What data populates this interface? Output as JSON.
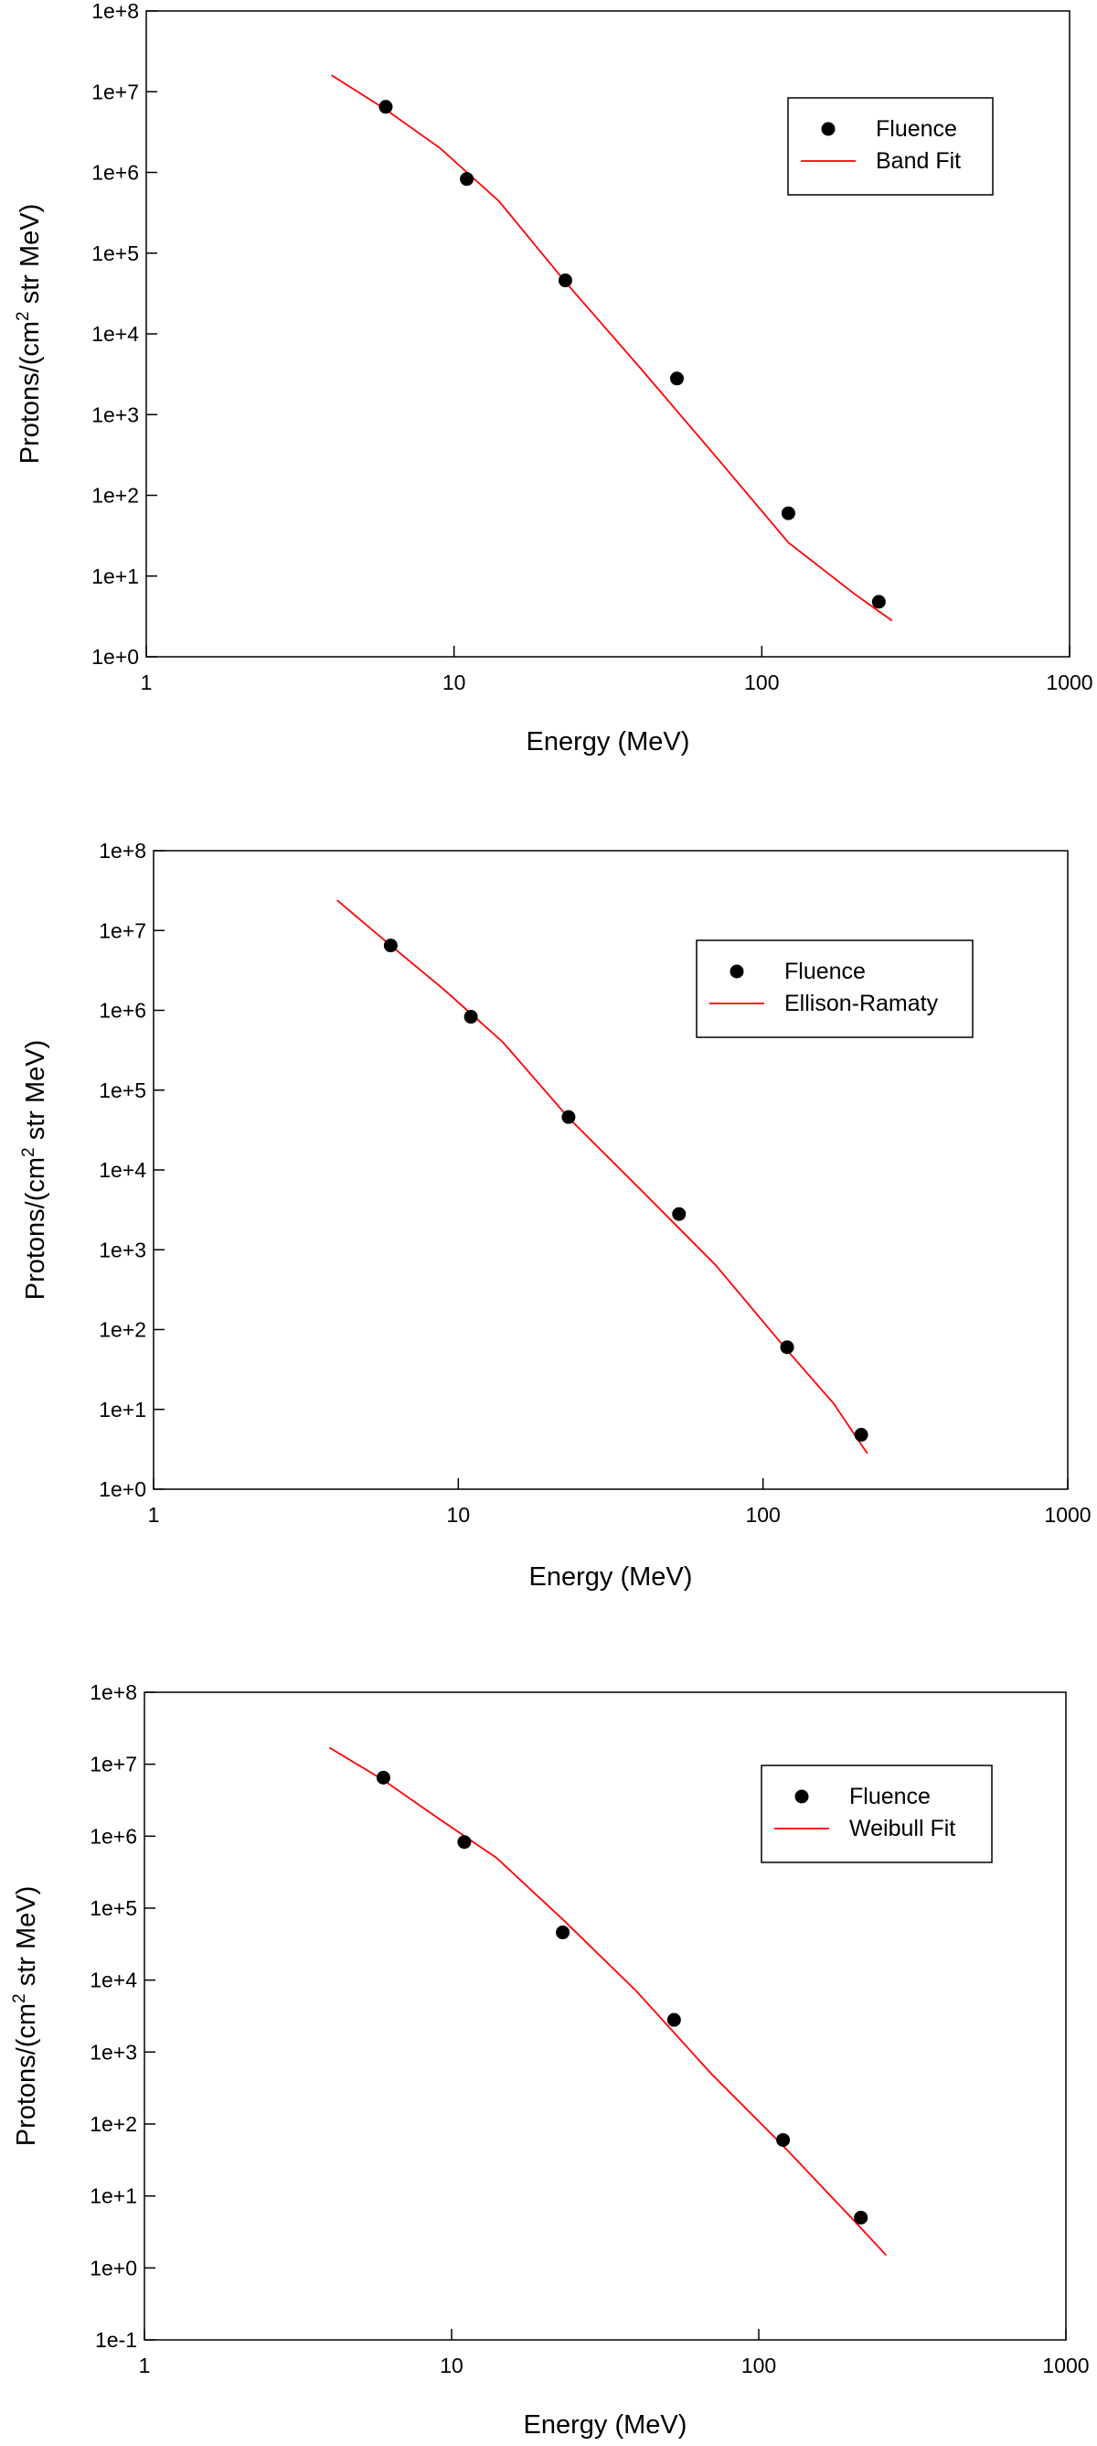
{
  "chart_data": [
    {
      "type": "scatter",
      "xlabel": "Energy (MeV)",
      "ylabel_main": "Protons/(cm",
      "ylabel_sup": "2",
      "ylabel_rest": " str MeV)",
      "xscale": "log",
      "yscale": "log",
      "xlim": [
        1,
        1000
      ],
      "ylim": [
        1,
        100000000
      ],
      "grid": false,
      "legend_position": "top-right",
      "x_ticks": [
        "1",
        "10",
        "100",
        "1000"
      ],
      "y_ticks": [
        "1e+0",
        "1e+1",
        "1e+2",
        "1e+3",
        "1e+4",
        "1e+5",
        "1e+6",
        "1e+7",
        "1e+8"
      ],
      "series": [
        {
          "name": "Fluence",
          "kind": "points",
          "color": "#000000",
          "x": [
            6,
            11,
            23,
            53,
            122,
            240
          ],
          "y": [
            6500000,
            830000,
            46000,
            2800,
            60,
            4.8
          ]
        },
        {
          "name": "Band Fit",
          "kind": "line",
          "color": "#ff0000",
          "x": [
            4,
            6,
            9,
            14,
            23,
            40,
            70,
            122,
            200,
            265
          ],
          "y": [
            16000000,
            6000000,
            2000000,
            440000,
            44000,
            3900,
            320,
            26,
            6,
            2.8
          ]
        }
      ]
    },
    {
      "type": "scatter",
      "xlabel": "Energy (MeV)",
      "ylabel_main": "Protons/(cm",
      "ylabel_sup": "2",
      "ylabel_rest": " str MeV)",
      "xscale": "log",
      "yscale": "log",
      "xlim": [
        1,
        1000
      ],
      "ylim": [
        1,
        100000000
      ],
      "grid": false,
      "legend_position": "top-right",
      "x_ticks": [
        "1",
        "10",
        "100",
        "1000"
      ],
      "y_ticks": [
        "1e+0",
        "1e+1",
        "1e+2",
        "1e+3",
        "1e+4",
        "1e+5",
        "1e+6",
        "1e+7",
        "1e+8"
      ],
      "series": [
        {
          "name": "Fluence",
          "kind": "points",
          "color": "#000000",
          "x": [
            6,
            11,
            23,
            53,
            120,
            210
          ],
          "y": [
            6500000,
            830000,
            46000,
            2800,
            60,
            4.8
          ]
        },
        {
          "name": "Ellison-Ramaty",
          "kind": "line",
          "color": "#ff0000",
          "x": [
            4,
            6,
            9,
            14,
            23,
            40,
            70,
            120,
            170,
            220
          ],
          "y": [
            24000000,
            6500000,
            1800000,
            400000,
            45000,
            5500,
            640,
            55,
            12,
            2.8
          ]
        }
      ]
    },
    {
      "type": "scatter",
      "xlabel": "Energy (MeV)",
      "ylabel_main": "Protons/(cm",
      "ylabel_sup": "2",
      "ylabel_rest": " str MeV)",
      "xscale": "log",
      "yscale": "log",
      "xlim": [
        1,
        1000
      ],
      "ylim": [
        0.1,
        100000000
      ],
      "grid": false,
      "legend_position": "top-right",
      "x_ticks": [
        "1",
        "10",
        "100",
        "1000"
      ],
      "y_ticks": [
        "1e-1",
        "1e+0",
        "1e+1",
        "1e+2",
        "1e+3",
        "1e+4",
        "1e+5",
        "1e+6",
        "1e+7",
        "1e+8"
      ],
      "series": [
        {
          "name": "Fluence",
          "kind": "points",
          "color": "#000000",
          "x": [
            6,
            11,
            23,
            53,
            120,
            215
          ],
          "y": [
            6500000,
            830000,
            46000,
            2800,
            60,
            5
          ]
        },
        {
          "name": "Weibull Fit",
          "kind": "line",
          "color": "#ff0000",
          "x": [
            4,
            6,
            9,
            14,
            23,
            40,
            70,
            120,
            200,
            260
          ],
          "y": [
            17000000,
            6000000,
            1800000,
            500000,
            70000,
            7000,
            500,
            50,
            5,
            1.5
          ]
        }
      ]
    }
  ]
}
